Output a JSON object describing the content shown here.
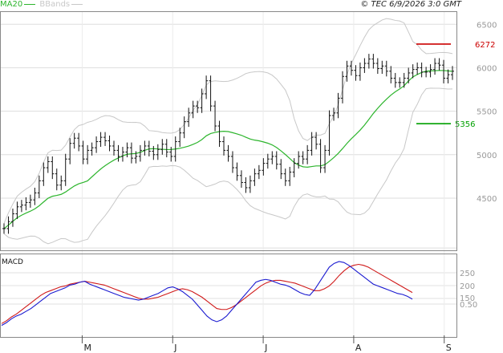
{
  "legend": {
    "ma_label": "MA20",
    "bb_label": "BBands",
    "ma_color": "#2db52d",
    "bb_color": "#c8c8c8"
  },
  "copyright": "© TEC 6/9/2026 3:0 GMT",
  "chart_data": [
    {
      "type": "line",
      "panel": "price",
      "y_ticks": [
        "6500",
        "6000",
        "5500",
        "5000",
        "4500"
      ],
      "ylim": [
        3900,
        6650
      ],
      "x_ticks": [
        "M",
        "J",
        "J",
        "A",
        "S"
      ],
      "x_tick_index": [
        19,
        41,
        63,
        85,
        107
      ],
      "n_bars": 110,
      "levels": [
        {
          "label": "6272",
          "value": 6272,
          "color": "#cc0000"
        },
        {
          "label": "5356",
          "value": 5356,
          "color": "#00a000"
        }
      ],
      "price_close": [
        4150,
        4230,
        4320,
        4400,
        4420,
        4450,
        4480,
        4560,
        4700,
        4850,
        4920,
        4780,
        4650,
        4700,
        4950,
        5130,
        5190,
        5100,
        4950,
        5050,
        5080,
        5150,
        5200,
        5160,
        5100,
        5050,
        4980,
        5030,
        5080,
        4960,
        4980,
        5050,
        5100,
        5040,
        5000,
        5060,
        5120,
        5030,
        4980,
        5150,
        5250,
        5380,
        5480,
        5560,
        5540,
        5700,
        5850,
        5560,
        5330,
        5150,
        5050,
        4980,
        4850,
        4760,
        4680,
        4620,
        4700,
        4780,
        4820,
        4900,
        4950,
        4980,
        4890,
        4780,
        4700,
        4800,
        4900,
        4980,
        4950,
        5050,
        5200,
        5120,
        4850,
        5050,
        5450,
        5480,
        5650,
        5900,
        6020,
        5970,
        5910,
        6000,
        6050,
        6100,
        6050,
        5990,
        6020,
        5960,
        5880,
        5830,
        5830,
        5880,
        5940,
        5980,
        6000,
        5950,
        5950,
        5980,
        6050,
        6030,
        5880,
        5920,
        5960
      ],
      "macd": [
        10,
        25,
        45,
        60,
        70,
        85,
        100,
        120,
        140,
        160,
        180,
        190,
        200,
        210,
        225,
        230,
        240,
        245,
        230,
        220,
        210,
        200,
        190,
        180,
        170,
        160,
        155,
        150,
        145,
        150,
        160,
        170,
        180,
        195,
        210,
        215,
        205,
        190,
        170,
        150,
        120,
        90,
        60,
        40,
        30,
        40,
        60,
        90,
        120,
        150,
        180,
        210,
        240,
        250,
        255,
        250,
        240,
        230,
        225,
        215,
        200,
        185,
        175,
        170,
        200,
        240,
        280,
        320,
        340,
        350,
        345,
        330,
        310,
        290,
        270,
        250,
        230,
        220,
        210,
        200,
        190,
        180,
        175,
        165,
        150
      ],
      "signal": [
        20,
        35,
        55,
        70,
        90,
        110,
        130,
        150,
        170,
        185,
        195,
        205,
        215,
        220,
        230,
        235,
        240,
        245,
        240,
        235,
        230,
        225,
        215,
        205,
        195,
        185,
        175,
        165,
        155,
        150,
        150,
        155,
        160,
        170,
        180,
        190,
        200,
        205,
        200,
        190,
        175,
        160,
        140,
        120,
        100,
        95,
        95,
        105,
        120,
        140,
        160,
        180,
        200,
        220,
        235,
        245,
        250,
        250,
        245,
        240,
        235,
        225,
        215,
        205,
        195,
        195,
        205,
        220,
        245,
        275,
        300,
        320,
        330,
        335,
        330,
        320,
        305,
        290,
        275,
        260,
        245,
        230,
        215,
        200,
        185
      ]
    },
    {
      "type": "line",
      "panel": "macd",
      "title": "MACD",
      "y_ticks": [
        "250",
        "200",
        "150",
        "100",
        "0.50"
      ],
      "series_colors": {
        "macd": "#1a1ad0",
        "signal": "#d01a1a"
      }
    }
  ]
}
